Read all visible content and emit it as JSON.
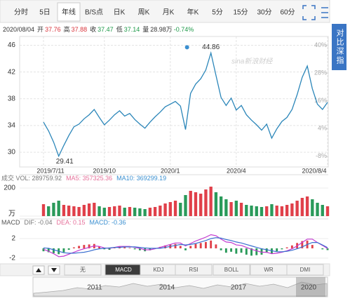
{
  "tabs": {
    "items": [
      "分时",
      "5日",
      "年线",
      "B/S点",
      "日K",
      "周K",
      "月K",
      "年K",
      "5分",
      "15分",
      "30分",
      "60分"
    ],
    "selected": "年线"
  },
  "info": [
    {
      "label": "2020/08/04",
      "value": "",
      "color": "#333"
    },
    {
      "label": "开",
      "value": "37.76",
      "color": "#d9343c"
    },
    {
      "label": "高",
      "value": "37.88",
      "color": "#d9343c"
    },
    {
      "label": "收",
      "value": "37.47",
      "color": "#1f9a4a"
    },
    {
      "label": "低",
      "value": "37.14",
      "color": "#1f9a4a"
    },
    {
      "label": "量",
      "value": "28.98万",
      "color": "#333"
    },
    {
      "label": "",
      "value": "-0.74%",
      "color": "#1f9a4a"
    }
  ],
  "side_button": "对比深指",
  "watermark": "sina新浪财经",
  "chart_data": [
    {
      "type": "line",
      "color": "#2b86b9",
      "grid": true,
      "categories": [
        "2019/7/11",
        null,
        null,
        null,
        null,
        null,
        null,
        null,
        null,
        null,
        null,
        null,
        "2019/10",
        null,
        null,
        null,
        null,
        null,
        null,
        null,
        null,
        null,
        null,
        null,
        null,
        "2020/1",
        null,
        null,
        null,
        null,
        null,
        null,
        null,
        null,
        null,
        null,
        null,
        null,
        "2020/4",
        null,
        null,
        null,
        null,
        null,
        null,
        null,
        null,
        null,
        null,
        null,
        null,
        null,
        null,
        null,
        null,
        null,
        "2020/8/4"
      ],
      "values": [
        34.5,
        33.2,
        31.5,
        29.41,
        31.0,
        32.5,
        33.8,
        34.2,
        35.0,
        35.6,
        36.4,
        35.2,
        34.1,
        34.8,
        35.6,
        36.2,
        35.4,
        35.8,
        34.9,
        34.2,
        33.6,
        34.5,
        35.3,
        36.0,
        36.8,
        37.2,
        37.6,
        36.9,
        33.4,
        38.8,
        40.2,
        41.0,
        42.3,
        44.86,
        41.5,
        38.2,
        37.0,
        38.1,
        36.3,
        37.0,
        35.6,
        34.8,
        34.1,
        33.3,
        34.2,
        32.1,
        33.5,
        34.6,
        35.2,
        36.4,
        38.6,
        41.2,
        42.9,
        39.5,
        37.2,
        36.4,
        37.47
      ],
      "ylim": [
        28,
        47
      ],
      "yticks": [
        30,
        34,
        38,
        42,
        46
      ],
      "y2lim": [
        -12,
        43
      ],
      "y2ticks": [
        {
          "value": -8,
          "label": "-8%"
        },
        {
          "value": 4,
          "label": "4%"
        },
        {
          "value": 16,
          "label": "16%"
        },
        {
          "value": 28,
          "label": "28%"
        },
        {
          "value": 40,
          "label": "40%"
        }
      ]
    },
    {
      "type": "bar",
      "legend": [
        {
          "text": "成交  VOL: 289759.92",
          "color": "#777"
        },
        {
          "text": "MA5: 357325.36",
          "color": "#e5709a"
        },
        {
          "text": "MA10: 369299.19",
          "color": "#3a8fd0"
        }
      ],
      "up_color": "#e0404a",
      "down_color": "#2a9a5a",
      "values": [
        85,
        70,
        95,
        110,
        80,
        75,
        70,
        65,
        80,
        90,
        95,
        70,
        60,
        65,
        70,
        75,
        60,
        65,
        60,
        55,
        50,
        60,
        65,
        75,
        90,
        100,
        110,
        95,
        150,
        180,
        170,
        160,
        190,
        210,
        170,
        140,
        120,
        100,
        110,
        95,
        80,
        75,
        70,
        65,
        70,
        85,
        75,
        70,
        80,
        90,
        110,
        130,
        140,
        120,
        95,
        80,
        70
      ],
      "ylim": [
        0,
        230
      ],
      "yticks": [
        {
          "value": 0,
          "label": "万"
        },
        200
      ]
    },
    {
      "type": "macd",
      "legend": [
        {
          "text": "MACD",
          "color": "#555"
        },
        {
          "text": "DIF: -0.04",
          "color": "#777"
        },
        {
          "text": "DEA: 0.15",
          "color": "#e5709a"
        },
        {
          "text": "MACD: -0.36",
          "color": "#3a8fd0"
        }
      ],
      "up_color": "#e0404a",
      "down_color": "#2a9a5a",
      "values": [
        -0.6,
        -0.8,
        -1.0,
        -1.2,
        -0.8,
        -0.3,
        0.2,
        0.5,
        0.7,
        0.8,
        0.9,
        0.4,
        -0.2,
        -0.3,
        0.1,
        0.4,
        0.2,
        0.1,
        -0.2,
        -0.4,
        -0.6,
        -0.4,
        -0.1,
        0.3,
        0.6,
        0.8,
        0.9,
        0.5,
        -0.4,
        0.5,
        0.9,
        1.1,
        1.3,
        1.6,
        0.8,
        -0.4,
        -0.9,
        -0.7,
        -1.1,
        -0.9,
        -1.3,
        -1.5,
        -1.4,
        -1.3,
        -0.9,
        -1.1,
        -0.6,
        -0.2,
        0.2,
        0.6,
        1.1,
        1.5,
        1.6,
        0.7,
        0.0,
        -0.2,
        -0.36
      ],
      "series": [
        {
          "color": "#c23ad0",
          "values": [
            -0.2,
            -0.6,
            -1.1,
            -1.7,
            -1.6,
            -1.2,
            -0.8,
            -0.4,
            -0.1,
            0.2,
            0.5,
            0.4,
            0.1,
            0.0,
            0.2,
            0.4,
            0.4,
            0.4,
            0.2,
            0.0,
            -0.3,
            -0.3,
            -0.1,
            0.2,
            0.5,
            0.8,
            1.1,
            1.1,
            0.5,
            1.0,
            1.5,
            1.9,
            2.3,
            2.8,
            2.6,
            1.9,
            1.3,
            1.2,
            0.7,
            0.6,
            0.2,
            -0.2,
            -0.5,
            -0.8,
            -0.8,
            -1.1,
            -1.0,
            -0.8,
            -0.5,
            -0.1,
            0.5,
            1.2,
            1.9,
            1.9,
            1.2,
            0.6,
            -0.04
          ]
        },
        {
          "color": "#3a6fd0",
          "values": [
            0.1,
            0.0,
            -0.3,
            -0.6,
            -0.9,
            -1.0,
            -1.0,
            -0.9,
            -0.8,
            -0.6,
            -0.3,
            -0.1,
            0.0,
            0.1,
            0.2,
            0.2,
            0.3,
            0.3,
            0.3,
            0.2,
            0.1,
            0.0,
            0.0,
            0.0,
            0.2,
            0.4,
            0.6,
            0.8,
            0.7,
            0.8,
            1.0,
            1.3,
            1.6,
            2.0,
            2.2,
            2.1,
            1.8,
            1.6,
            1.3,
            1.1,
            0.8,
            0.5,
            0.2,
            -0.1,
            -0.3,
            -0.5,
            -0.7,
            -0.7,
            -0.6,
            -0.4,
            -0.1,
            0.3,
            0.8,
            1.2,
            1.2,
            0.7,
            0.15
          ]
        }
      ],
      "ylim": [
        -2.6,
        4.6
      ],
      "yticks": [
        -2,
        2
      ]
    }
  ],
  "indicator_tabs": {
    "items": [
      "无",
      "MACD",
      "KDJ",
      "RSI",
      "BOLL",
      "WR",
      "DMI"
    ],
    "selected": "MACD"
  },
  "navigator": {
    "labels": [
      "2011",
      "2014",
      "2017",
      "2020"
    ]
  }
}
